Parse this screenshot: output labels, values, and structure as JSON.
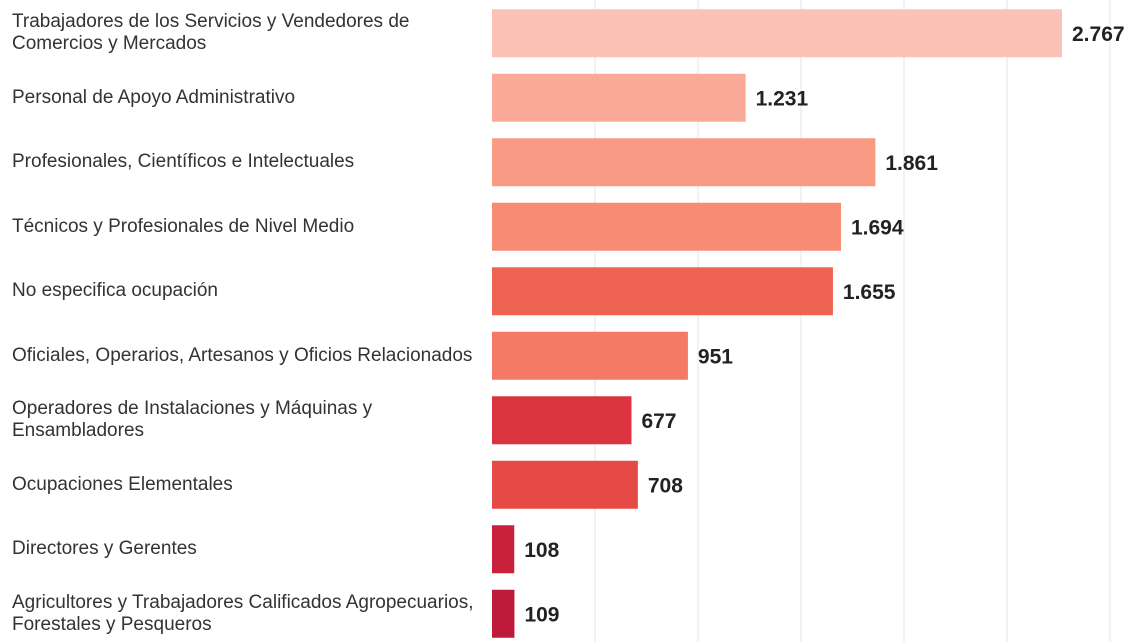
{
  "chart_data": {
    "type": "barh",
    "categories": [
      "Trabajadores de los Servicios y Vendedores de Comercios y Mercados",
      "Personal de Apoyo Administrativo",
      "Profesionales, Científicos e Intelectuales",
      "Técnicos y Profesionales de Nivel Medio",
      "No especifica ocupación",
      "Oficiales, Operarios, Artesanos y Oficios Relacionados",
      "Operadores de Instalaciones y Máquinas y Ensambladores",
      "Ocupaciones Elementales",
      "Directores y Gerentes",
      "Agricultores y Trabajadores Calificados Agropecuarios, Forestales y Pesqueros"
    ],
    "values": [
      2767,
      1231,
      1861,
      1694,
      1655,
      951,
      677,
      708,
      108,
      109
    ],
    "value_labels": [
      "2.767",
      "1.231",
      "1.861",
      "1.694",
      "1.655",
      "951",
      "677",
      "708",
      "108",
      "109"
    ],
    "colors": [
      "#fcc2b6",
      "#fba999",
      "#f99b84",
      "#f88b73",
      "#ee6351",
      "#f47a66",
      "#db3340",
      "#e64a47",
      "#c9213b",
      "#be1a3a"
    ],
    "xlim": [
      0,
      3000
    ],
    "xticks": [
      500,
      1000,
      1500,
      2000,
      2500,
      3000
    ],
    "grid": true
  }
}
